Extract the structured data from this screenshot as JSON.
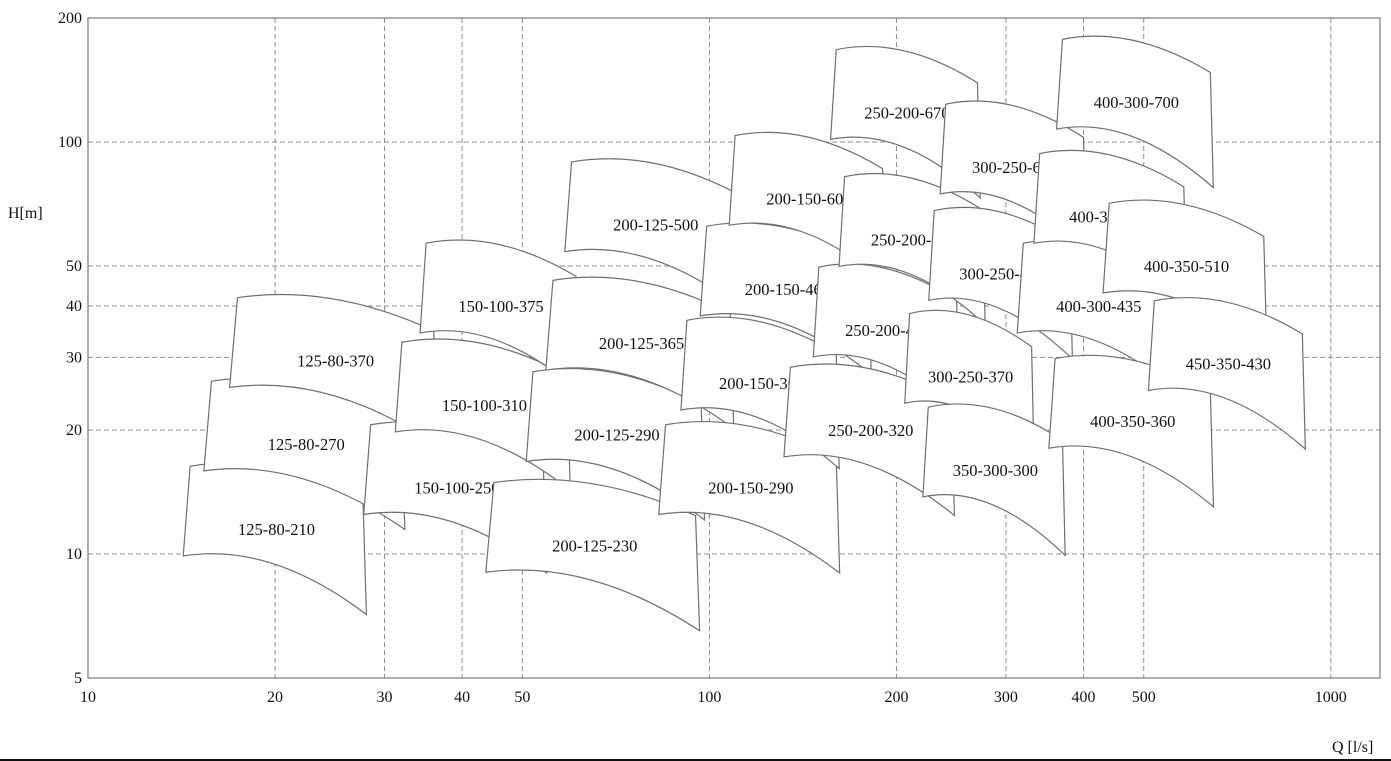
{
  "chart_data": {
    "type": "scatter",
    "chart_kind": "pump family coverage chart (operating ranges)",
    "xscale": "log",
    "yscale": "log",
    "xlim": [
      10,
      1200
    ],
    "ylim": [
      5,
      200
    ],
    "xlabel": "Q [l/s]",
    "ylabel": "H[m]",
    "x_ticks": [
      10,
      20,
      30,
      40,
      50,
      100,
      200,
      300,
      400,
      500,
      1000
    ],
    "y_ticks": [
      5,
      10,
      20,
      30,
      40,
      50,
      100,
      200
    ],
    "grid": true,
    "colors": {
      "outline": "#6f6f6f",
      "grid": "#8c8c8c",
      "text": "#111111"
    },
    "regions": [
      {
        "name": "125-80-210",
        "q_range": [
          14.6,
          27.7
        ],
        "h_center": 11.5
      },
      {
        "name": "125-80-270",
        "q_range": [
          15.8,
          31.9
        ],
        "h_center": 18.5
      },
      {
        "name": "125-80-370",
        "q_range": [
          17.4,
          36.0
        ],
        "h_center": 29.5
      },
      {
        "name": "150-100-250",
        "q_range": [
          28.5,
          54.0
        ],
        "h_center": 14.5
      },
      {
        "name": "150-100-310",
        "q_range": [
          32.0,
          59.0
        ],
        "h_center": 23.0
      },
      {
        "name": "150-100-375",
        "q_range": [
          35.0,
          61.0
        ],
        "h_center": 40.0
      },
      {
        "name": "200-125-230",
        "q_range": [
          45.0,
          95.0
        ],
        "h_center": 10.5
      },
      {
        "name": "200-125-290",
        "q_range": [
          52.0,
          97.0
        ],
        "h_center": 19.5
      },
      {
        "name": "200-125-365",
        "q_range": [
          56.0,
          108.0
        ],
        "h_center": 32.5
      },
      {
        "name": "200-125-500",
        "q_range": [
          60.0,
          112.0
        ],
        "h_center": 63.0
      },
      {
        "name": "200-150-290",
        "q_range": [
          85.0,
          160.0
        ],
        "h_center": 14.5
      },
      {
        "name": "200-150-360",
        "q_range": [
          92.0,
          160.0
        ],
        "h_center": 26.0
      },
      {
        "name": "200-150-460",
        "q_range": [
          99.0,
          180.0
        ],
        "h_center": 44.0
      },
      {
        "name": "200-150-605",
        "q_range": [
          110.0,
          190.0
        ],
        "h_center": 73.0
      },
      {
        "name": "250-200-320",
        "q_range": [
          135.0,
          245.0
        ],
        "h_center": 20.0
      },
      {
        "name": "250-200-420",
        "q_range": [
          150.0,
          250.0
        ],
        "h_center": 35.0
      },
      {
        "name": "250-200-520",
        "q_range": [
          165.0,
          275.0
        ],
        "h_center": 58.0
      },
      {
        "name": "250-200-670",
        "q_range": [
          160.0,
          270.0
        ],
        "h_center": 118.0
      },
      {
        "name": "300-250-370",
        "q_range": [
          210.0,
          330.0
        ],
        "h_center": 27.0
      },
      {
        "name": "300-250-480",
        "q_range": [
          230.0,
          380.0
        ],
        "h_center": 48.0
      },
      {
        "name": "300-250-600",
        "q_range": [
          240.0,
          400.0
        ],
        "h_center": 87.0
      },
      {
        "name": "350-300-300",
        "q_range": [
          225.0,
          370.0
        ],
        "h_center": 16.0
      },
      {
        "name": "400-300-435",
        "q_range": [
          320.0,
          560.0
        ],
        "h_center": 40.0
      },
      {
        "name": "400-300-560",
        "q_range": [
          340.0,
          580.0
        ],
        "h_center": 66.0
      },
      {
        "name": "400-300-700",
        "q_range": [
          370.0,
          640.0
        ],
        "h_center": 125.0
      },
      {
        "name": "400-350-360",
        "q_range": [
          360.0,
          640.0
        ],
        "h_center": 21.0
      },
      {
        "name": "400-350-510",
        "q_range": [
          440.0,
          780.0
        ],
        "h_center": 50.0
      },
      {
        "name": "450-350-430",
        "q_range": [
          520.0,
          900.0
        ],
        "h_center": 29.0
      }
    ]
  }
}
